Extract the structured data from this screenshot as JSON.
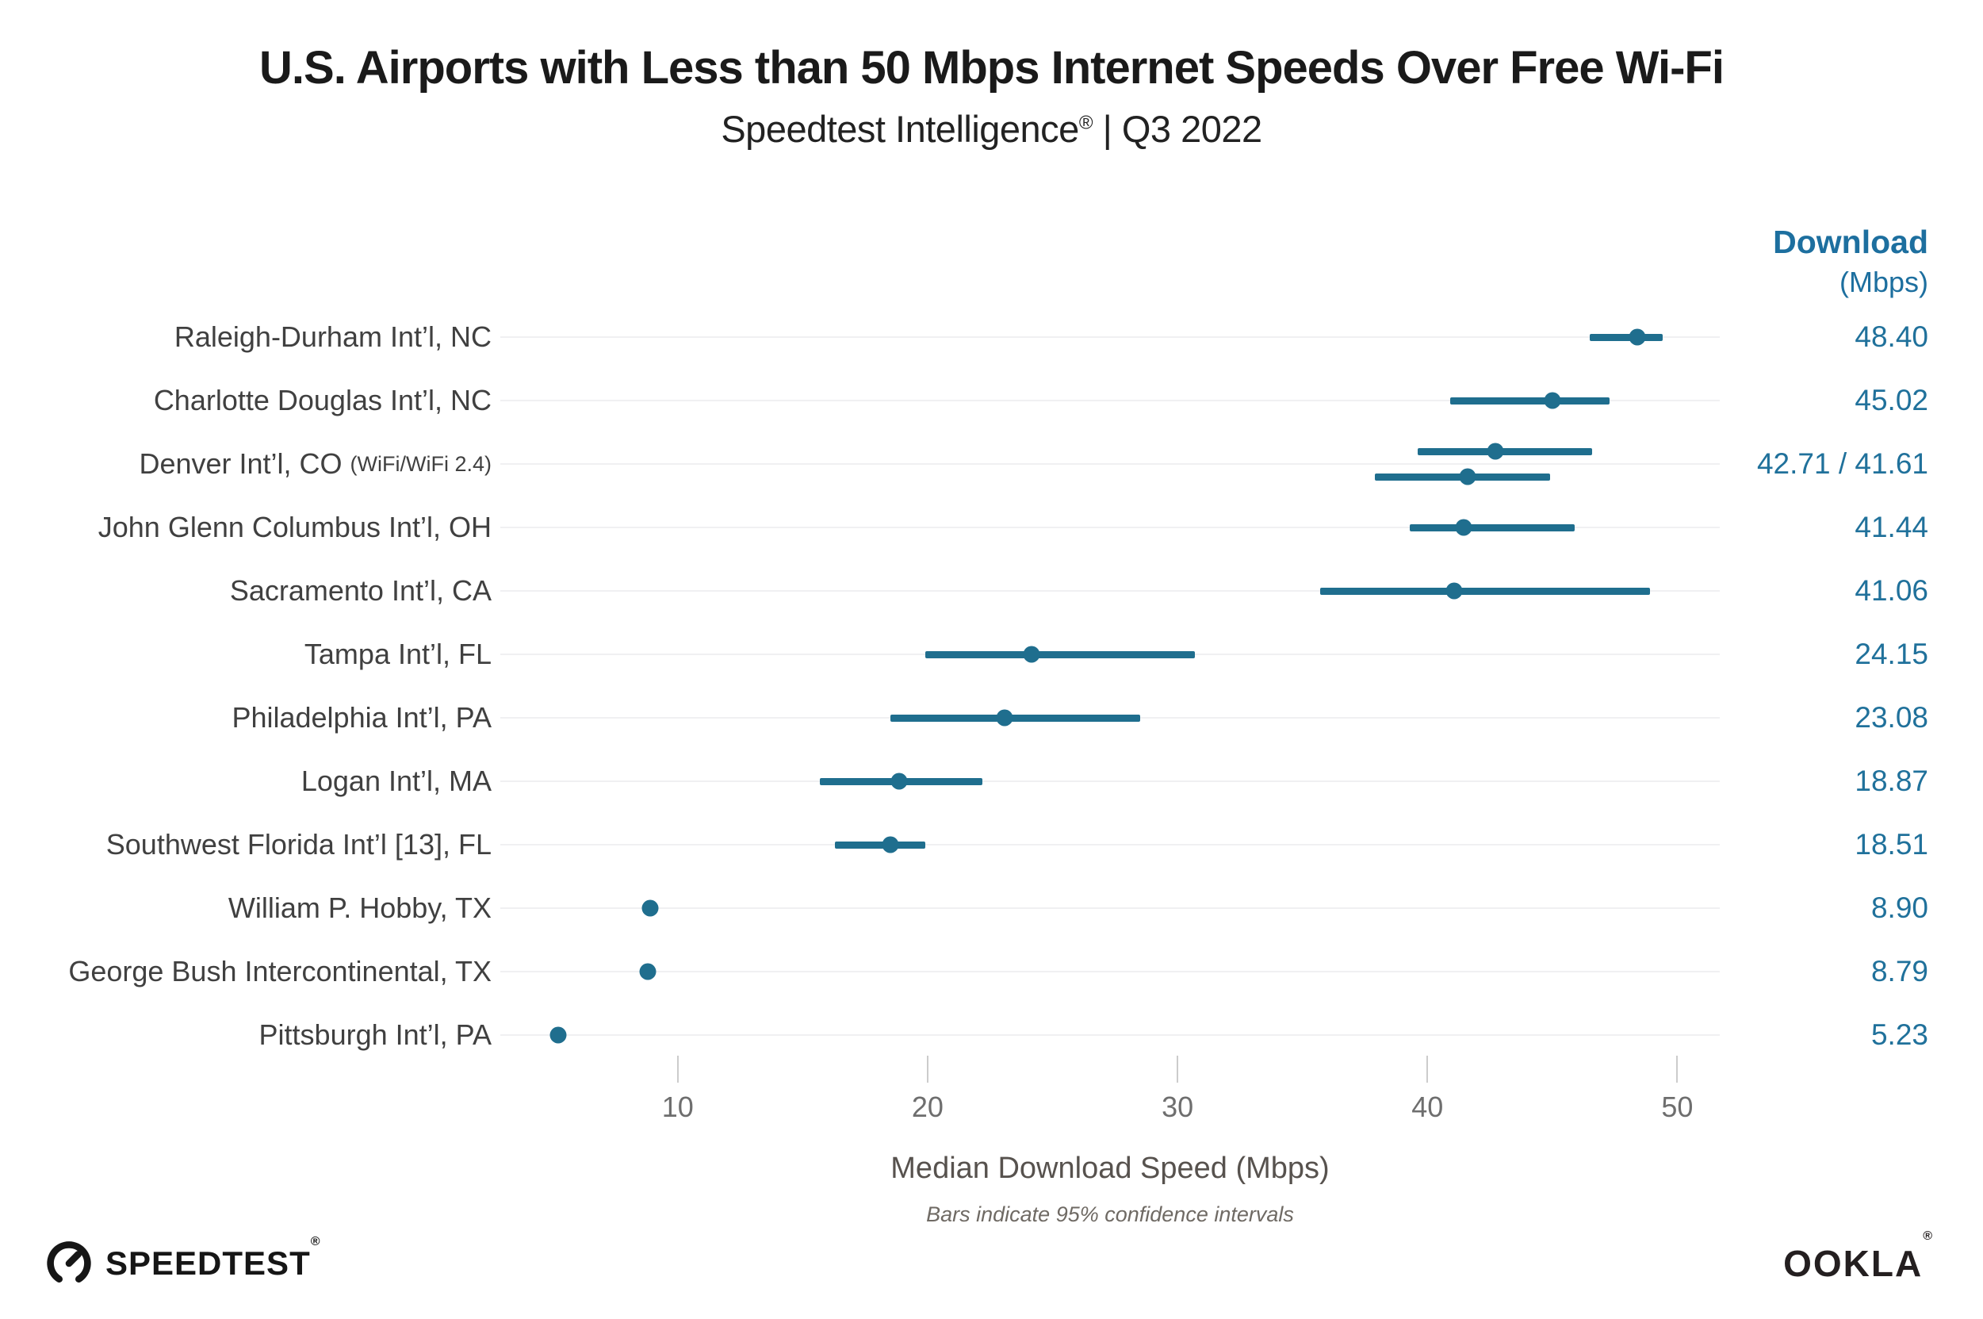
{
  "header": {
    "title": "U.S. Airports with Less than 50 Mbps Internet Speeds Over Free Wi-Fi",
    "subtitle_brand": "Speedtest Intelligence",
    "subtitle_reg": "®",
    "subtitle_rest": " | Q3 2022"
  },
  "value_column": {
    "header_line1": "Download",
    "header_line2": "(Mbps)"
  },
  "footer": {
    "speedtest_wordmark": "SPEEDTEST",
    "speedtest_reg": "®",
    "ookla_wordmark": "OOKLA",
    "ookla_reg": "®"
  },
  "colors": {
    "accent": "#1F6E8E",
    "accent_text": "#20719B",
    "accent_header": "#1D6F9F",
    "label_gray": "#404040",
    "title_black": "#1A1A1A",
    "tick_label_gray": "#6E6E6E",
    "tick_line_gray": "#CCCCCC",
    "gridline_gray": "#F0F0F2",
    "axis_title_gray": "#57524E",
    "footnote_gray": "#6F6A64",
    "logo_black": "#161616"
  },
  "chart_data": {
    "type": "scatter",
    "variant": "horizontal-dot-plot-with-95pct-confidence-intervals",
    "title": "U.S. Airports with Less than 50 Mbps Internet Speeds Over Free Wi-Fi",
    "subtitle": "Speedtest Intelligence® | Q3 2022",
    "xlabel": "Median Download Speed (Mbps)",
    "footnote": "Bars indicate 95% confidence intervals",
    "value_column_header": "Download (Mbps)",
    "x_ticks": [
      10,
      20,
      30,
      40,
      50
    ],
    "x_domain": [
      2.9,
      51.7
    ],
    "grid": "horizontal-row-lines-only",
    "legend": "none",
    "rows": [
      {
        "label": "Raleigh-Durham Int’l, NC",
        "value_label": "48.40",
        "points": [
          {
            "value": 48.4,
            "ci": [
              46.5,
              49.4
            ]
          }
        ]
      },
      {
        "label": "Charlotte Douglas Int’l, NC",
        "value_label": "45.02",
        "points": [
          {
            "value": 45.02,
            "ci": [
              40.9,
              47.3
            ]
          }
        ]
      },
      {
        "label": "Denver Int’l, CO",
        "note": "(WiFi/WiFi 2.4)",
        "value_label": "42.71 / 41.61",
        "points": [
          {
            "value": 42.71,
            "ci": [
              39.6,
              46.6
            ]
          },
          {
            "value": 41.61,
            "ci": [
              37.9,
              44.9
            ]
          }
        ]
      },
      {
        "label": "John Glenn Columbus Int’l, OH",
        "value_label": "41.44",
        "points": [
          {
            "value": 41.44,
            "ci": [
              39.3,
              45.9
            ]
          }
        ]
      },
      {
        "label": "Sacramento Int’l, CA",
        "value_label": "41.06",
        "points": [
          {
            "value": 41.06,
            "ci": [
              35.7,
              48.9
            ]
          }
        ]
      },
      {
        "label": "Tampa Int’l, FL",
        "value_label": "24.15",
        "points": [
          {
            "value": 24.15,
            "ci": [
              19.9,
              30.7
            ]
          }
        ]
      },
      {
        "label": "Philadelphia Int’l, PA",
        "value_label": "23.08",
        "points": [
          {
            "value": 23.08,
            "ci": [
              18.5,
              28.5
            ]
          }
        ]
      },
      {
        "label": "Logan Int’l, MA",
        "value_label": "18.87",
        "points": [
          {
            "value": 18.87,
            "ci": [
              15.7,
              22.2
            ]
          }
        ]
      },
      {
        "label": "Southwest Florida Int’l [13], FL",
        "value_label": "18.51",
        "points": [
          {
            "value": 18.51,
            "ci": [
              16.3,
              19.9
            ]
          }
        ]
      },
      {
        "label": "William P. Hobby, TX",
        "value_label": "8.90",
        "points": [
          {
            "value": 8.9,
            "ci": [
              8.7,
              9.1
            ]
          }
        ]
      },
      {
        "label": "George Bush Intercontinental, TX",
        "value_label": "8.79",
        "points": [
          {
            "value": 8.79,
            "ci": [
              8.6,
              9.0
            ]
          }
        ]
      },
      {
        "label": "Pittsburgh Int’l, PA",
        "value_label": "5.23",
        "points": [
          {
            "value": 5.23,
            "ci": [
              5.1,
              5.4
            ]
          }
        ]
      }
    ]
  }
}
